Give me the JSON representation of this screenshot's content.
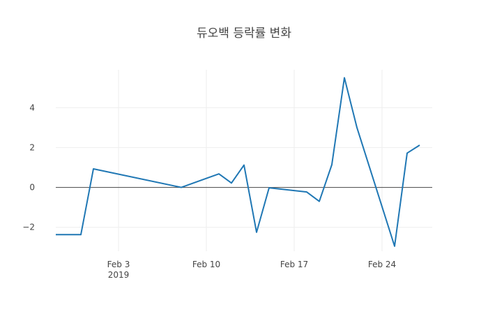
{
  "chart_data": {
    "type": "line",
    "title": "듀오백 등락률 변화",
    "xlabel": "",
    "ylabel": "",
    "xlim": [
      "2019-01-29",
      "2019-02-28"
    ],
    "ylim": [
      -3.2,
      5.9
    ],
    "x_ticks": [
      {
        "date": "2019-02-03",
        "label": "Feb 3",
        "sublabel": "2019"
      },
      {
        "date": "2019-02-10",
        "label": "Feb 10",
        "sublabel": ""
      },
      {
        "date": "2019-02-17",
        "label": "Feb 17",
        "sublabel": ""
      },
      {
        "date": "2019-02-24",
        "label": "Feb 24",
        "sublabel": ""
      }
    ],
    "y_ticks": [
      {
        "value": -2,
        "label": "−2"
      },
      {
        "value": 0,
        "label": "0"
      },
      {
        "value": 2,
        "label": "2"
      },
      {
        "value": 4,
        "label": "4"
      }
    ],
    "grid": true,
    "zero_line": true,
    "series": [
      {
        "color": "#1f77b4",
        "points": [
          {
            "x": "2019-01-29",
            "y": -2.37
          },
          {
            "x": "2019-01-31",
            "y": -2.37
          },
          {
            "x": "2019-02-01",
            "y": 0.93
          },
          {
            "x": "2019-02-08",
            "y": 0.0
          },
          {
            "x": "2019-02-11",
            "y": 0.68
          },
          {
            "x": "2019-02-12",
            "y": 0.22
          },
          {
            "x": "2019-02-13",
            "y": 1.12
          },
          {
            "x": "2019-02-14",
            "y": -2.25
          },
          {
            "x": "2019-02-15",
            "y": -0.02
          },
          {
            "x": "2019-02-18",
            "y": -0.23
          },
          {
            "x": "2019-02-19",
            "y": -0.7
          },
          {
            "x": "2019-02-20",
            "y": 1.14
          },
          {
            "x": "2019-02-21",
            "y": 5.5
          },
          {
            "x": "2019-02-22",
            "y": 3.0
          },
          {
            "x": "2019-02-25",
            "y": -2.95
          },
          {
            "x": "2019-02-26",
            "y": 1.72
          },
          {
            "x": "2019-02-27",
            "y": 2.12
          }
        ]
      }
    ]
  }
}
